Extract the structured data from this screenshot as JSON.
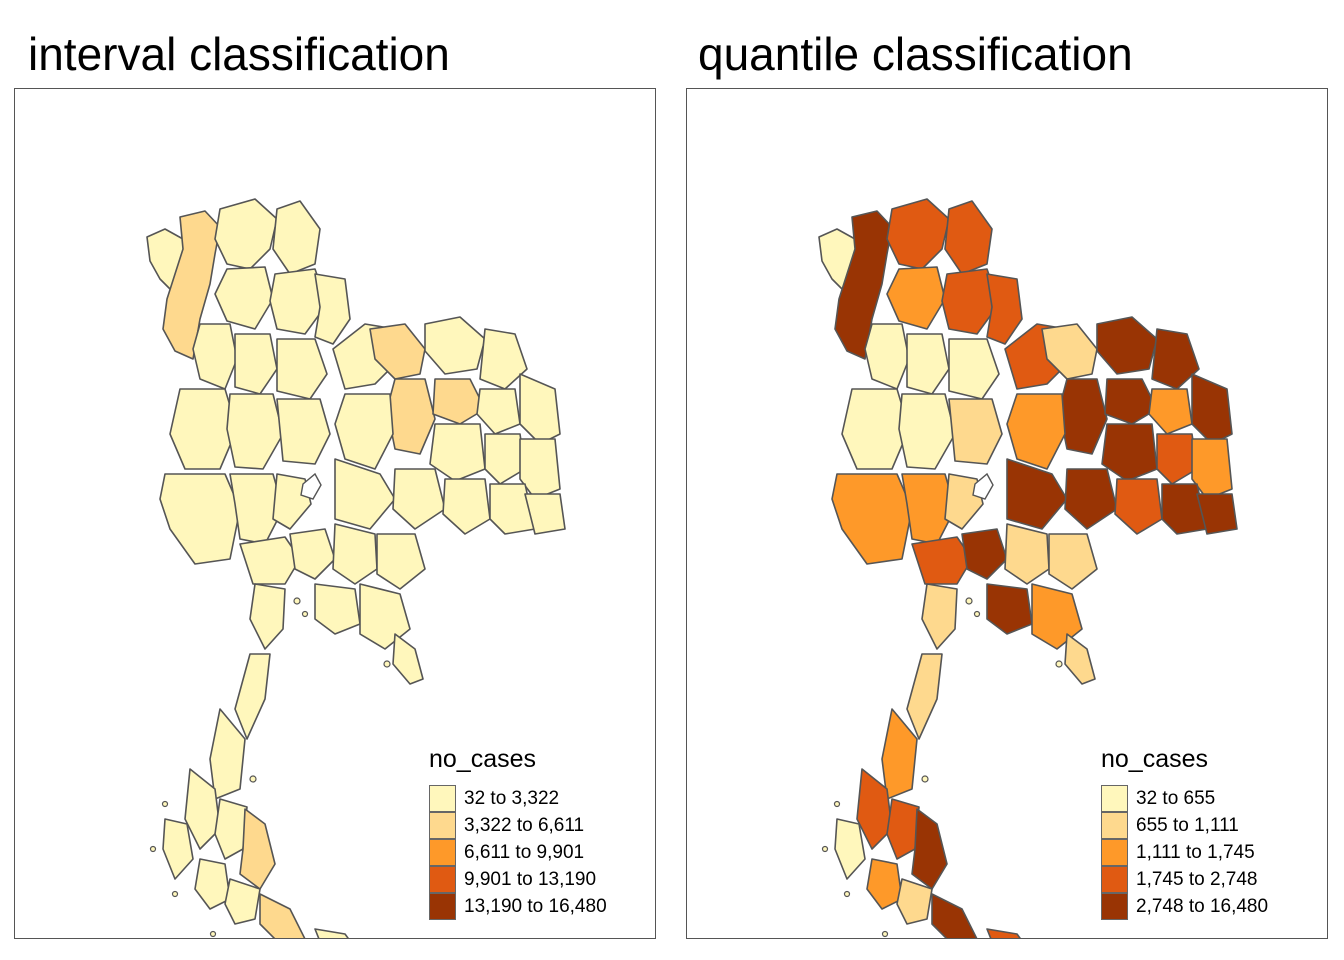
{
  "panels": [
    {
      "title": "interval classification",
      "legend": {
        "title": "no_cases",
        "items": [
          {
            "label": "32 to 3,322",
            "color": "#FFF7BC"
          },
          {
            "label": "3,322 to 6,611",
            "color": "#FED98E"
          },
          {
            "label": "6,611 to 9,901",
            "color": "#FE9929"
          },
          {
            "label": "9,901 to 13,190",
            "color": "#E05A12"
          },
          {
            "label": "13,190 to 16,480",
            "color": "#993404"
          }
        ]
      }
    },
    {
      "title": "quantile classification",
      "legend": {
        "title": "no_cases",
        "items": [
          {
            "label": "32 to 655",
            "color": "#FFF7BC"
          },
          {
            "label": "655 to 1,111",
            "color": "#FED98E"
          },
          {
            "label": "1,111 to 1,745",
            "color": "#FE9929"
          },
          {
            "label": "1,745 to 2,748",
            "color": "#E05A12"
          },
          {
            "label": "2,748 to 16,480",
            "color": "#993404"
          }
        ]
      }
    }
  ]
}
